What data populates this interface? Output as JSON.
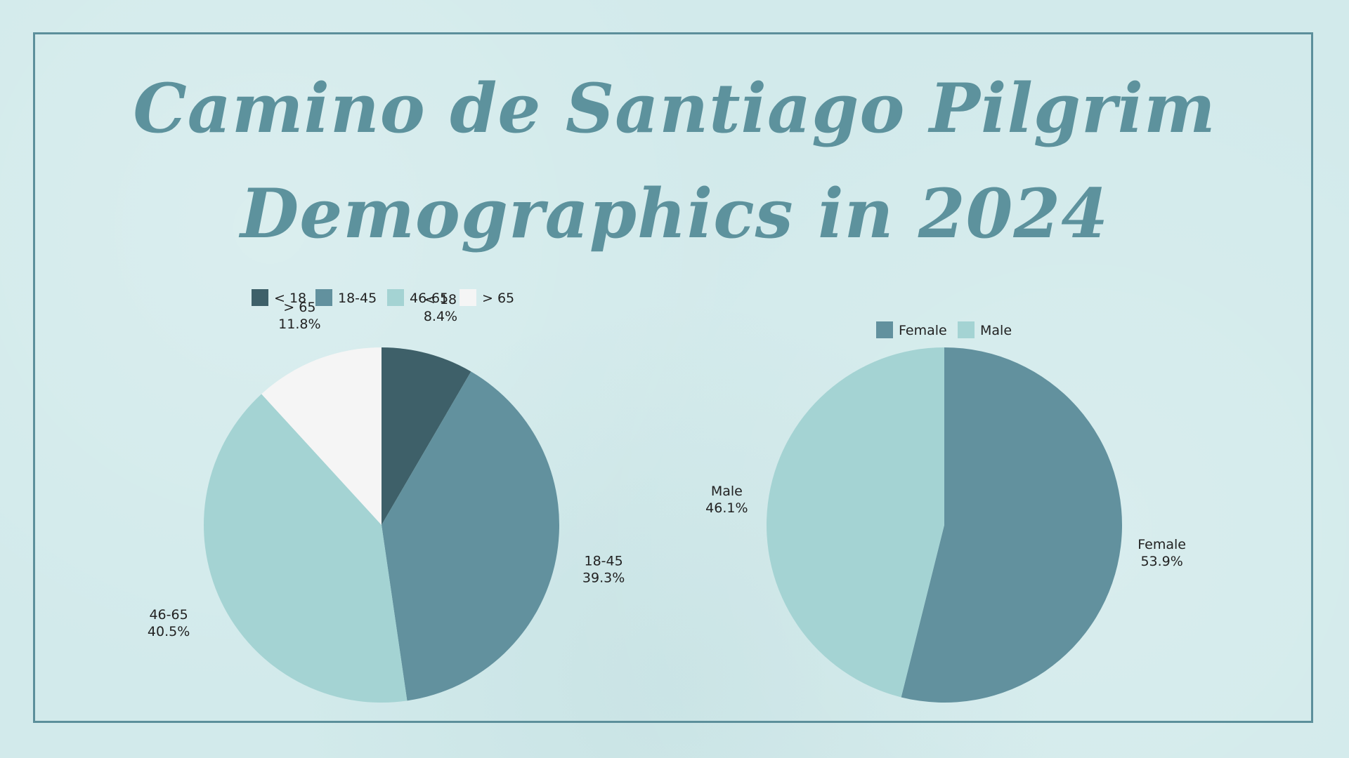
{
  "title": {
    "line1": "Camino de Santiago Pilgrim",
    "line2": "Demographics in 2024"
  },
  "chart_data": [
    {
      "type": "pie",
      "title": "Camino de Santiago Pilgrim Demographics in 2024",
      "name": "age",
      "categories": [
        "< 18",
        "18-45",
        "46-65",
        "> 65"
      ],
      "values": [
        8.4,
        39.3,
        40.5,
        11.8
      ],
      "value_labels": [
        "8.4%",
        "39.3%",
        "40.5%",
        "11.8%"
      ],
      "colors": [
        "#3e6069",
        "#62919e",
        "#a4d3d3",
        "#f5f5f5"
      ],
      "start": "12 o'clock",
      "direction": "clockwise",
      "legend_position": "top"
    },
    {
      "type": "pie",
      "name": "gender",
      "categories": [
        "Female",
        "Male"
      ],
      "values": [
        53.9,
        46.1
      ],
      "value_labels": [
        "53.9%",
        "46.1%"
      ],
      "colors": [
        "#62919e",
        "#a4d3d3"
      ],
      "start": "12 o'clock",
      "direction": "clockwise",
      "legend_position": "top"
    }
  ]
}
